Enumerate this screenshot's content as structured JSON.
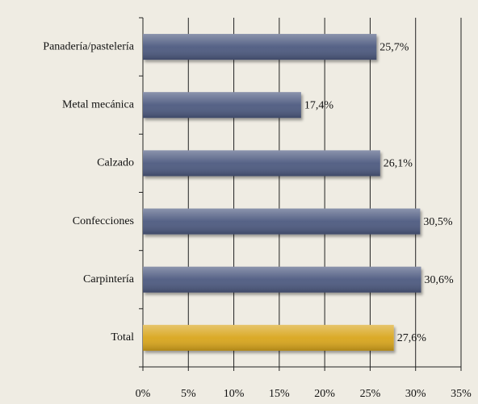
{
  "chart_data": {
    "type": "hbar",
    "categories": [
      "Panadería/pastelería",
      "Metal mecánica",
      "Calzado",
      "Confecciones",
      "Carpintería",
      "Total"
    ],
    "values": [
      25.7,
      17.4,
      26.1,
      30.5,
      30.6,
      27.6
    ],
    "value_labels": [
      "25,7%",
      "17,4%",
      "26,1%",
      "30,5%",
      "30,6%",
      "27,6%"
    ],
    "colors": [
      "#4e5a80",
      "#4e5a80",
      "#4e5a80",
      "#4e5a80",
      "#4e5a80",
      "#d9a61c"
    ],
    "xlim": [
      0,
      35
    ],
    "xticks": [
      {
        "value": 0,
        "label": "0%"
      },
      {
        "value": 5,
        "label": "5%"
      },
      {
        "value": 10,
        "label": "10%"
      },
      {
        "value": 15,
        "label": "15%"
      },
      {
        "value": 20,
        "label": "20%"
      },
      {
        "value": 25,
        "label": "25%"
      },
      {
        "value": 30,
        "label": "30%"
      },
      {
        "value": 35,
        "label": "35%"
      }
    ],
    "grid": true
  }
}
